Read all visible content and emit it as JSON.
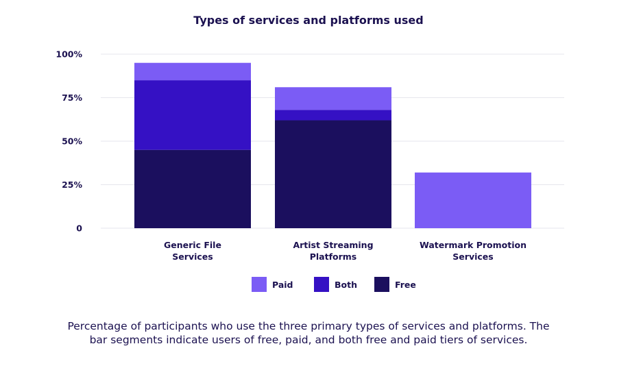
{
  "chart_data": {
    "type": "bar",
    "stacked": true,
    "title": "Types of services and platforms used",
    "categories": [
      [
        "Generic File",
        "Services"
      ],
      [
        "Artist Streaming",
        "Platforms"
      ],
      [
        "Watermark Promotion",
        "Services"
      ]
    ],
    "series": [
      {
        "name": "Free",
        "color": "#1b0f5e",
        "values": [
          45,
          62,
          0
        ]
      },
      {
        "name": "Both",
        "color": "#3511c4",
        "values": [
          40,
          6,
          0
        ]
      },
      {
        "name": "Paid",
        "color": "#7b5cf5",
        "values": [
          10,
          13,
          32
        ]
      }
    ],
    "legend_order": [
      "Paid",
      "Both",
      "Free"
    ],
    "legend_position": "bottom",
    "yticks": [
      {
        "value": 0,
        "label": "0"
      },
      {
        "value": 25,
        "label": "25%"
      },
      {
        "value": 50,
        "label": "50%"
      },
      {
        "value": 75,
        "label": "75%"
      },
      {
        "value": 100,
        "label": "100%"
      }
    ],
    "ylim": [
      0,
      100
    ],
    "grid": true
  },
  "caption": "Percentage of participants who use the three primary types of services and platforms. The bar segments indicate users of free, paid, and both free and paid tiers of services."
}
